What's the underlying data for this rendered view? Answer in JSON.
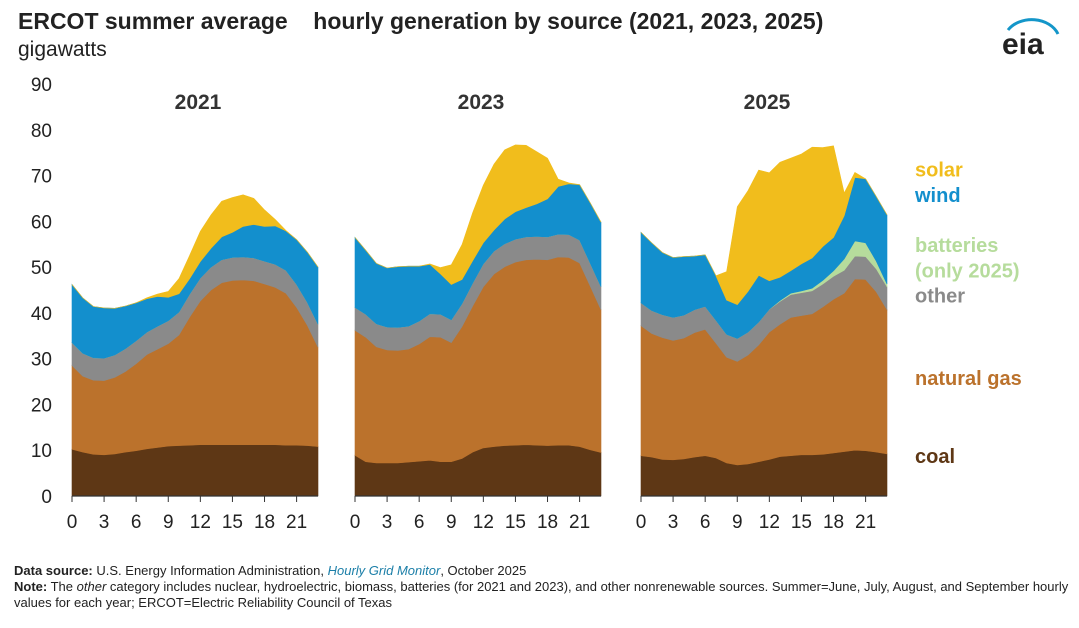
{
  "title_left": "ERCOT summer average",
  "title_right": "hourly generation by source (2021, 2023, 2025)",
  "units": "gigawatts",
  "logo_text": "eia",
  "colors": {
    "coal": "#5e3715",
    "natural gas": "#bb722c",
    "other": "#8a8a8a",
    "batteries": "#b6dc9c",
    "wind": "#138fcd",
    "solar": "#f1bd1c"
  },
  "legend": [
    {
      "key": "solar",
      "label": "solar",
      "color": "#f1bd1c"
    },
    {
      "key": "wind",
      "label": "wind",
      "color": "#138fcd"
    },
    {
      "key": "batteries",
      "label": "batteries",
      "color": "#b6dc9c"
    },
    {
      "key": "batteries2",
      "label": "(only 2025)",
      "color": "#b6dc9c"
    },
    {
      "key": "other",
      "label": "other",
      "color": "#8a8a8a"
    },
    {
      "key": "natural gas",
      "label": "natural gas",
      "color": "#bb722c"
    },
    {
      "key": "coal",
      "label": "coal",
      "color": "#5e3715"
    }
  ],
  "footer": {
    "source_label": "Data source:",
    "source_text_a": "U.S. Energy Information Administration,",
    "source_link": "Hourly Grid Monitor",
    "source_text_b": ", October 2025",
    "note_label": "Note:",
    "note_text_a": "The",
    "note_italic": "other",
    "note_text_b": "category includes nuclear, hydroelectric, biomass, batteries (for 2021 and 2023), and other nonrenewable sources. Summer=June, July, August, and September hourly values for each year; ERCOT=Electric Reliability Council of Texas"
  },
  "chart_data": {
    "type": "area",
    "stacked": true,
    "xlabel": "",
    "ylabel": "gigawatts",
    "ylim": [
      0,
      90
    ],
    "yticks": [
      0,
      10,
      20,
      30,
      40,
      50,
      60,
      70,
      80,
      90
    ],
    "xticks": [
      0,
      3,
      6,
      9,
      12,
      15,
      18,
      21
    ],
    "x": [
      0,
      1,
      2,
      3,
      4,
      5,
      6,
      7,
      8,
      9,
      10,
      11,
      12,
      13,
      14,
      15,
      16,
      17,
      18,
      19,
      20,
      21,
      22,
      23
    ],
    "stack_order": [
      "coal",
      "natural gas",
      "other",
      "batteries",
      "wind",
      "solar"
    ],
    "panels": [
      {
        "title": "2021",
        "series": [
          {
            "name": "coal",
            "values": [
              10.2,
              9.6,
              9.1,
              9.0,
              9.2,
              9.6,
              9.9,
              10.3,
              10.6,
              10.9,
              11.0,
              11.1,
              11.2,
              11.2,
              11.2,
              11.2,
              11.2,
              11.2,
              11.2,
              11.2,
              11.1,
              11.1,
              11.0,
              10.8
            ]
          },
          {
            "name": "natural gas",
            "values": [
              18.3,
              16.6,
              16.2,
              16.2,
              16.7,
              17.6,
              19.0,
              20.6,
              21.5,
              22.4,
              24.2,
              28.0,
              31.4,
              33.8,
              35.4,
              35.9,
              36.0,
              35.8,
              35.1,
              34.4,
              33.2,
              30.1,
              26.3,
              21.7
            ]
          },
          {
            "name": "other",
            "values": [
              5.0,
              5.0,
              4.9,
              4.9,
              4.9,
              5.0,
              5.0,
              4.9,
              5.0,
              5.0,
              5.0,
              5.0,
              5.0,
              5.0,
              5.0,
              5.0,
              5.0,
              5.0,
              5.0,
              5.0,
              5.0,
              5.0,
              5.0,
              5.0
            ]
          },
          {
            "name": "batteries",
            "values": [
              0,
              0,
              0,
              0,
              0,
              0,
              0,
              0,
              0,
              0,
              0,
              0,
              0,
              0,
              0,
              0,
              0,
              0,
              0,
              0,
              0,
              0,
              0,
              0
            ]
          },
          {
            "name": "wind",
            "values": [
              12.7,
              12.1,
              11.2,
              11.0,
              10.2,
              9.3,
              8.3,
              7.3,
              6.5,
              5.1,
              4.0,
              3.4,
              3.6,
              4.1,
              5.0,
              5.5,
              6.7,
              7.3,
              7.6,
              8.4,
              8.6,
              9.8,
              11.0,
              12.5
            ]
          },
          {
            "name": "solar",
            "values": [
              0,
              0,
              0,
              0,
              0,
              0,
              0,
              0.2,
              0.5,
              1.3,
              3.3,
              5.1,
              6.6,
              7.3,
              7.8,
              7.6,
              6.9,
              5.7,
              3.6,
              1.4,
              0.1,
              0,
              0,
              0
            ]
          }
        ]
      },
      {
        "title": "2023",
        "series": [
          {
            "name": "coal",
            "values": [
              8.9,
              7.5,
              7.2,
              7.2,
              7.2,
              7.4,
              7.6,
              7.8,
              7.5,
              7.5,
              8.2,
              9.6,
              10.5,
              10.8,
              11.0,
              11.1,
              11.2,
              11.1,
              11.0,
              11.1,
              11.1,
              10.8,
              10.1,
              9.5
            ]
          },
          {
            "name": "natural gas",
            "values": [
              27.3,
              27.2,
              25.4,
              24.7,
              24.6,
              24.7,
              25.6,
              27.0,
              27.2,
              26.0,
              28.8,
              31.9,
              35.2,
              37.7,
              39.1,
              40.0,
              40.4,
              40.6,
              40.6,
              41.1,
              41.0,
              40.1,
              35.7,
              31.2
            ]
          },
          {
            "name": "other",
            "values": [
              5.0,
              5.0,
              5.0,
              5.0,
              5.0,
              5.0,
              5.0,
              5.0,
              5.0,
              5.0,
              5.0,
              5.0,
              5.0,
              5.0,
              5.0,
              5.0,
              5.0,
              5.0,
              5.0,
              5.0,
              5.0,
              5.0,
              5.0,
              5.0
            ]
          },
          {
            "name": "batteries",
            "values": [
              0,
              0,
              0,
              0,
              0,
              0,
              0,
              0,
              0,
              0,
              0,
              0,
              0,
              0,
              0,
              0,
              0,
              0,
              0,
              0,
              0,
              0,
              0,
              0
            ]
          },
          {
            "name": "wind",
            "values": [
              15.3,
              14.0,
              13.2,
              12.9,
              13.3,
              13.1,
              12.0,
              10.8,
              8.8,
              7.7,
              5.3,
              4.9,
              4.6,
              4.6,
              5.4,
              6.0,
              6.4,
              7.1,
              8.3,
              10.4,
              11.1,
              12.1,
              13.2,
              14.1
            ]
          },
          {
            "name": "solar",
            "values": [
              0,
              0,
              0,
              0,
              0,
              0,
              0,
              0.1,
              1.4,
              4.3,
              7.6,
              10.5,
              12.6,
              14.4,
              15.1,
              14.6,
              13.6,
              11.4,
              8.9,
              1.6,
              0.2,
              0,
              0,
              0
            ]
          }
        ]
      },
      {
        "title": "2025",
        "series": [
          {
            "name": "coal",
            "values": [
              8.8,
              8.5,
              8.0,
              7.9,
              8.1,
              8.5,
              8.8,
              8.3,
              7.2,
              6.8,
              7.0,
              7.5,
              8.0,
              8.6,
              8.8,
              9.0,
              9.0,
              9.1,
              9.4,
              9.7,
              10.0,
              9.9,
              9.6,
              9.2
            ]
          },
          {
            "name": "natural gas",
            "values": [
              28.4,
              27.0,
              26.6,
              26.1,
              26.4,
              27.2,
              27.6,
              25.1,
              23.1,
              22.6,
              23.8,
              25.5,
              27.8,
              28.9,
              30.2,
              30.4,
              30.8,
              32.2,
              33.6,
              34.6,
              37.4,
              37.4,
              35.0,
              31.5
            ]
          },
          {
            "name": "other",
            "values": [
              5.0,
              5.0,
              5.0,
              5.0,
              5.0,
              5.0,
              5.0,
              5.0,
              5.0,
              5.0,
              5.0,
              5.0,
              5.0,
              5.0,
              5.0,
              5.0,
              5.0,
              5.0,
              5.0,
              5.0,
              5.0,
              5.0,
              5.0,
              5.0
            ]
          },
          {
            "name": "batteries",
            "values": [
              0,
              0,
              0,
              0,
              0,
              0,
              0,
              0,
              0,
              0,
              0,
              0,
              0,
              0.2,
              0.3,
              0.4,
              0.6,
              0.8,
              1.2,
              2.5,
              3.3,
              3.0,
              1.7,
              0.6
            ]
          },
          {
            "name": "wind",
            "values": [
              15.4,
              14.8,
              13.6,
              13.1,
              12.8,
              11.7,
              11.3,
              9.7,
              7.5,
              7.4,
              8.9,
              10.2,
              6.2,
              5.1,
              4.9,
              5.9,
              6.6,
              7.4,
              7.3,
              9.4,
              13.9,
              14.0,
              14.1,
              15.1
            ]
          },
          {
            "name": "solar",
            "values": [
              0,
              0,
              0,
              0,
              0,
              0,
              0,
              0,
              6.2,
              21.4,
              22.0,
              23.0,
              23.6,
              25.1,
              24.6,
              24.0,
              24.2,
              21.6,
              20.0,
              5.0,
              1.1,
              0,
              0,
              0
            ]
          }
        ]
      }
    ]
  }
}
